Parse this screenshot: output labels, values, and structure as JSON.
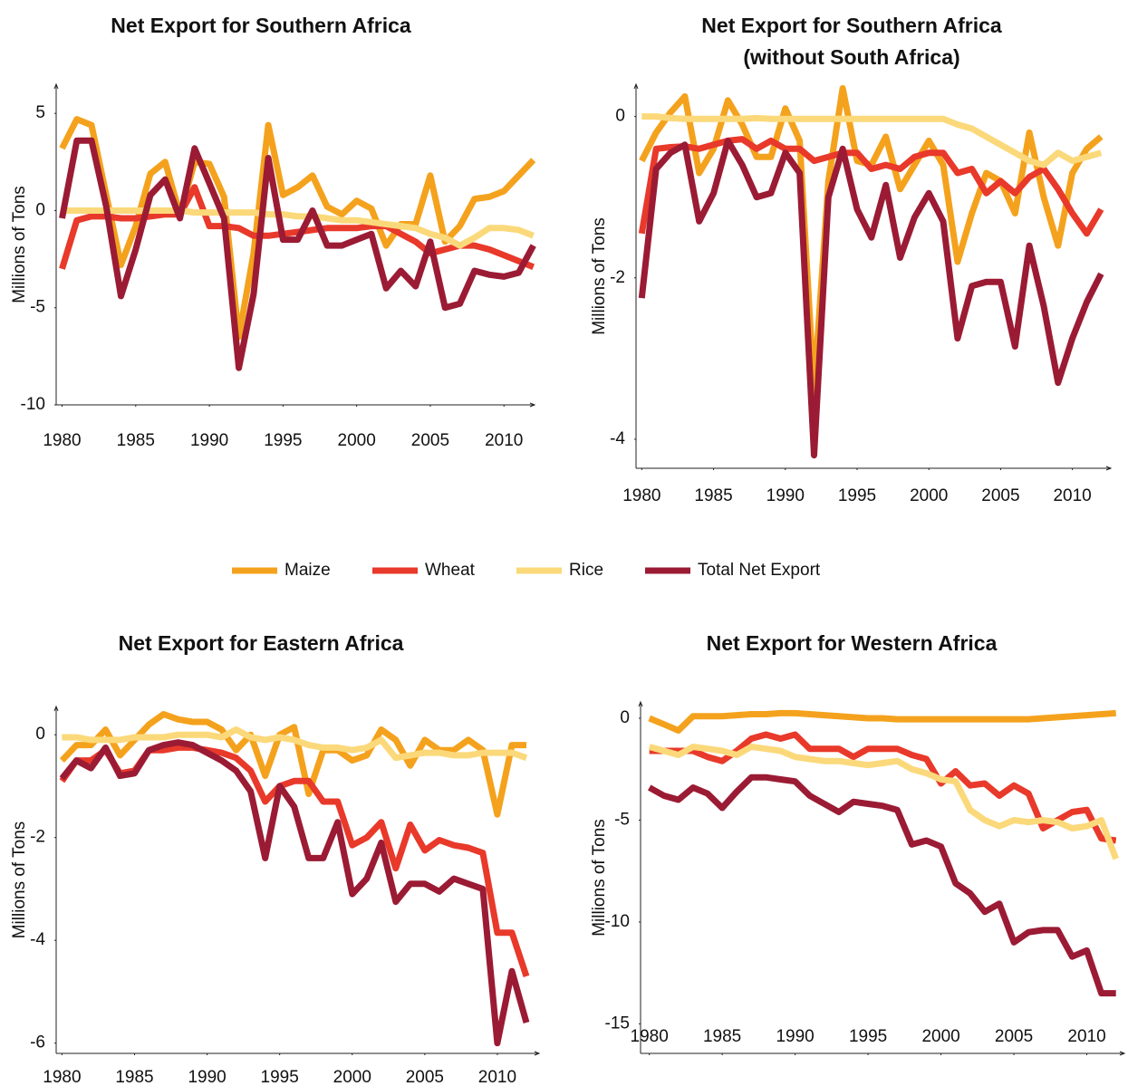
{
  "legend": [
    {
      "name": "Maize",
      "color": "#f4a21d"
    },
    {
      "name": "Wheat",
      "color": "#e8392a"
    },
    {
      "name": "Rice",
      "color": "#fbd97a"
    },
    {
      "name": "Total Net Export",
      "color": "#9b1b34"
    }
  ],
  "chart_data": [
    {
      "type": "line",
      "title": "Net Export for Southern Africa",
      "ylabel": "Millions of Tons",
      "x": [
        1980,
        1981,
        1982,
        1983,
        1984,
        1985,
        1986,
        1987,
        1988,
        1989,
        1990,
        1991,
        1992,
        1993,
        1994,
        1995,
        1996,
        1997,
        1998,
        1999,
        2000,
        2001,
        2002,
        2003,
        2004,
        2005,
        2006,
        2007,
        2008,
        2009,
        2010,
        2011,
        2012
      ],
      "xlim": [
        1979.6,
        2012.2
      ],
      "xticks": [
        1980,
        1985,
        1990,
        1995,
        2000,
        2005,
        2010
      ],
      "ylim": [
        -10,
        6.5
      ],
      "yticks": [
        -10,
        -5,
        0,
        5
      ],
      "series": [
        {
          "values": [
            3.2,
            4.7,
            4.4,
            0.8,
            -2.8,
            -0.8,
            1.9,
            2.5,
            -0.2,
            2.5,
            2.4,
            0.7,
            -6.5,
            -2.2,
            4.4,
            0.8,
            1.2,
            1.8,
            0.2,
            -0.2,
            0.5,
            0.1,
            -1.8,
            -0.7,
            -0.7,
            1.8,
            -1.6,
            -0.8,
            0.6,
            0.7,
            1.0,
            1.8,
            2.6
          ]
        },
        {
          "values": [
            -3,
            -0.5,
            -0.3,
            -0.3,
            -0.4,
            -0.4,
            -0.3,
            -0.2,
            -0.2,
            1.2,
            -0.8,
            -0.8,
            -0.9,
            -1.3,
            -1.3,
            -1.2,
            -1.1,
            -1.0,
            -0.9,
            -0.9,
            -0.9,
            -0.8,
            -0.8,
            -1.2,
            -1.6,
            -2.2,
            -2.0,
            -1.8,
            -1.8,
            -2.0,
            -2.3,
            -2.6,
            -2.9
          ]
        },
        {
          "values": [
            0,
            0,
            0,
            0,
            0,
            0,
            0,
            0,
            0,
            -0.1,
            -0.1,
            -0.1,
            -0.1,
            -0.1,
            -0.2,
            -0.2,
            -0.3,
            -0.3,
            -0.4,
            -0.5,
            -0.5,
            -0.6,
            -0.7,
            -0.8,
            -0.9,
            -1.2,
            -1.4,
            -1.8,
            -1.4,
            -0.9,
            -0.9,
            -1.0,
            -1.3
          ]
        },
        {
          "values": [
            -0.4,
            3.6,
            3.6,
            0.2,
            -4.4,
            -2.0,
            0.8,
            1.6,
            -0.4,
            3.2,
            1.4,
            -0.4,
            -8.1,
            -4.3,
            2.7,
            -1.5,
            -1.5,
            0.0,
            -1.8,
            -1.8,
            -1.5,
            -1.2,
            -4.0,
            -3.1,
            -3.9,
            -1.6,
            -5.0,
            -4.8,
            -3.1,
            -3.3,
            -3.4,
            -3.2,
            -1.8
          ]
        }
      ]
    },
    {
      "type": "line",
      "title": [
        "Net Export for Southern Africa",
        "(without South Africa)"
      ],
      "ylabel": "Millions of Tons",
      "x": [
        1980,
        1981,
        1982,
        1983,
        1984,
        1985,
        1986,
        1987,
        1988,
        1989,
        1990,
        1991,
        1992,
        1993,
        1994,
        1995,
        1996,
        1997,
        1998,
        1999,
        2000,
        2001,
        2002,
        2003,
        2004,
        2005,
        2006,
        2007,
        2008,
        2009,
        2010,
        2011,
        2012
      ],
      "xlim": [
        1979.6,
        2012.8
      ],
      "xticks": [
        1980,
        1985,
        1990,
        1995,
        2000,
        2005,
        2010
      ],
      "ylim": [
        -4.36,
        0.4
      ],
      "yticks": [
        -4,
        -2,
        0
      ],
      "series": [
        {
          "values": [
            -0.55,
            -0.2,
            0.05,
            0.25,
            -0.7,
            -0.4,
            0.2,
            -0.1,
            -0.5,
            -0.5,
            0.1,
            -0.3,
            -3.4,
            -0.8,
            0.35,
            -0.55,
            -0.6,
            -0.25,
            -0.9,
            -0.6,
            -0.3,
            -0.6,
            -1.8,
            -1.2,
            -0.7,
            -0.8,
            -1.2,
            -0.2,
            -1.0,
            -1.6,
            -0.7,
            -0.4,
            -0.25
          ]
        },
        {
          "values": [
            -1.45,
            -0.4,
            -0.38,
            -0.37,
            -0.4,
            -0.35,
            -0.3,
            -0.28,
            -0.4,
            -0.3,
            -0.4,
            -0.4,
            -0.55,
            -0.5,
            -0.45,
            -0.45,
            -0.65,
            -0.6,
            -0.65,
            -0.5,
            -0.45,
            -0.45,
            -0.7,
            -0.65,
            -0.95,
            -0.8,
            -0.95,
            -0.75,
            -0.65,
            -0.9,
            -1.2,
            -1.45,
            -1.15
          ]
        },
        {
          "values": [
            0,
            0,
            -0.02,
            -0.03,
            -0.03,
            -0.03,
            -0.03,
            -0.03,
            -0.02,
            -0.03,
            -0.03,
            -0.03,
            -0.03,
            -0.03,
            -0.03,
            -0.03,
            -0.03,
            -0.03,
            -0.03,
            -0.03,
            -0.03,
            -0.03,
            -0.1,
            -0.15,
            -0.25,
            -0.35,
            -0.45,
            -0.55,
            -0.6,
            -0.45,
            -0.55,
            -0.5,
            -0.45
          ]
        },
        {
          "values": [
            -2.25,
            -0.65,
            -0.45,
            -0.35,
            -1.3,
            -0.95,
            -0.3,
            -0.6,
            -1.0,
            -0.95,
            -0.45,
            -0.7,
            -4.2,
            -1.0,
            -0.4,
            -1.15,
            -1.5,
            -0.85,
            -1.75,
            -1.25,
            -0.95,
            -1.3,
            -2.75,
            -2.1,
            -2.05,
            -2.05,
            -2.85,
            -1.6,
            -2.35,
            -3.3,
            -2.75,
            -2.3,
            -1.95
          ]
        }
      ]
    },
    {
      "type": "line",
      "title": "Net Export for Eastern Africa",
      "ylabel": "Millions of Tons",
      "x": [
        1980,
        1981,
        1982,
        1983,
        1984,
        1985,
        1986,
        1987,
        1988,
        1989,
        1990,
        1991,
        1992,
        1993,
        1994,
        1995,
        1996,
        1997,
        1998,
        1999,
        2000,
        2001,
        2002,
        2003,
        2004,
        2005,
        2006,
        2007,
        2008,
        2009,
        2010,
        2011,
        2012
      ],
      "xlim": [
        1979.6,
        2013
      ],
      "xticks": [
        1980,
        1985,
        1990,
        1995,
        2000,
        2005,
        2010
      ],
      "ylim": [
        -6.2,
        0.55
      ],
      "yticks": [
        -6,
        -4,
        -2,
        0
      ],
      "series": [
        {
          "values": [
            -0.5,
            -0.2,
            -0.2,
            0.1,
            -0.4,
            -0.1,
            0.2,
            0.4,
            0.3,
            0.25,
            0.25,
            0.1,
            -0.3,
            0.0,
            -0.8,
            0.0,
            0.15,
            -1.15,
            -0.3,
            -0.3,
            -0.5,
            -0.4,
            0.1,
            -0.1,
            -0.6,
            -0.1,
            -0.3,
            -0.3,
            -0.1,
            -0.3,
            -1.55,
            -0.2,
            -0.2
          ]
        },
        {
          "values": [
            -0.9,
            -0.5,
            -0.5,
            -0.3,
            -0.75,
            -0.7,
            -0.3,
            -0.3,
            -0.25,
            -0.25,
            -0.3,
            -0.35,
            -0.45,
            -0.7,
            -1.3,
            -1.0,
            -0.9,
            -0.9,
            -1.3,
            -1.3,
            -2.15,
            -2.0,
            -1.7,
            -2.6,
            -1.75,
            -2.25,
            -2.05,
            -2.15,
            -2.2,
            -2.3,
            -3.85,
            -3.85,
            -4.7
          ]
        },
        {
          "values": [
            -0.05,
            -0.05,
            -0.1,
            -0.1,
            -0.1,
            -0.05,
            -0.05,
            -0.05,
            0.0,
            0.0,
            0.0,
            -0.05,
            0.1,
            -0.05,
            -0.1,
            -0.05,
            -0.1,
            -0.2,
            -0.25,
            -0.25,
            -0.3,
            -0.25,
            -0.1,
            -0.45,
            -0.4,
            -0.35,
            -0.35,
            -0.4,
            -0.4,
            -0.35,
            -0.35,
            -0.35,
            -0.45
          ]
        },
        {
          "values": [
            -0.85,
            -0.5,
            -0.65,
            -0.25,
            -0.8,
            -0.75,
            -0.3,
            -0.2,
            -0.15,
            -0.2,
            -0.35,
            -0.5,
            -0.7,
            -1.1,
            -2.4,
            -1.0,
            -1.4,
            -2.4,
            -2.4,
            -1.7,
            -3.1,
            -2.8,
            -2.1,
            -3.25,
            -2.9,
            -2.9,
            -3.05,
            -2.8,
            -2.9,
            -3.0,
            -6.0,
            -4.6,
            -5.6
          ]
        }
      ]
    },
    {
      "type": "line",
      "title": "Net Export for Western Africa",
      "ylabel": "Millions of Tons",
      "x": [
        1980,
        1981,
        1982,
        1983,
        1984,
        1985,
        1986,
        1987,
        1988,
        1989,
        1990,
        1991,
        1992,
        1993,
        1994,
        1995,
        1996,
        1997,
        1998,
        1999,
        2000,
        2001,
        2002,
        2003,
        2004,
        2005,
        2006,
        2007,
        2008,
        2009,
        2010,
        2011,
        2012
      ],
      "xlim": [
        1979.4,
        2012.7
      ],
      "xticks": [
        1980,
        1985,
        1990,
        1995,
        2000,
        2005,
        2010
      ],
      "ylim": [
        -16.45,
        0.8
      ],
      "yticks": [
        -15,
        -10,
        -5,
        0
      ],
      "series": [
        {
          "values": [
            0,
            -0.3,
            -0.6,
            0.1,
            0.1,
            0.1,
            0.15,
            0.2,
            0.2,
            0.25,
            0.25,
            0.2,
            0.15,
            0.1,
            0.05,
            0.0,
            0.0,
            -0.05,
            -0.05,
            -0.05,
            -0.05,
            -0.05,
            -0.05,
            -0.05,
            -0.05,
            -0.05,
            -0.05,
            0.0,
            0.05,
            0.1,
            0.15,
            0.2,
            0.25
          ]
        },
        {
          "values": [
            -1.6,
            -1.6,
            -1.6,
            -1.6,
            -1.9,
            -2.1,
            -1.6,
            -1.0,
            -0.8,
            -1.0,
            -0.8,
            -1.5,
            -1.5,
            -1.5,
            -1.9,
            -1.5,
            -1.5,
            -1.5,
            -1.8,
            -2.0,
            -3.2,
            -2.6,
            -3.3,
            -3.2,
            -3.8,
            -3.3,
            -3.7,
            -5.4,
            -5.0,
            -4.6,
            -4.5,
            -5.9,
            -6.0
          ]
        },
        {
          "values": [
            -1.4,
            -1.6,
            -1.8,
            -1.4,
            -1.5,
            -1.6,
            -1.8,
            -1.4,
            -1.5,
            -1.6,
            -1.9,
            -2.0,
            -2.1,
            -2.1,
            -2.2,
            -2.3,
            -2.2,
            -2.1,
            -2.5,
            -2.7,
            -3.0,
            -3.1,
            -4.5,
            -5.0,
            -5.3,
            -5.0,
            -5.1,
            -5.0,
            -5.1,
            -5.4,
            -5.3,
            -5.0,
            -6.9
          ]
        },
        {
          "values": [
            -3.4,
            -3.8,
            -4.0,
            -3.4,
            -3.7,
            -4.4,
            -3.6,
            -2.9,
            -2.9,
            -3.0,
            -3.1,
            -3.8,
            -4.2,
            -4.6,
            -4.1,
            -4.2,
            -4.3,
            -4.5,
            -6.2,
            -6.0,
            -6.3,
            -8.1,
            -8.6,
            -9.5,
            -9.1,
            -11.0,
            -10.5,
            -10.4,
            -10.4,
            -11.7,
            -11.4,
            -13.5,
            -13.5
          ]
        }
      ]
    }
  ]
}
